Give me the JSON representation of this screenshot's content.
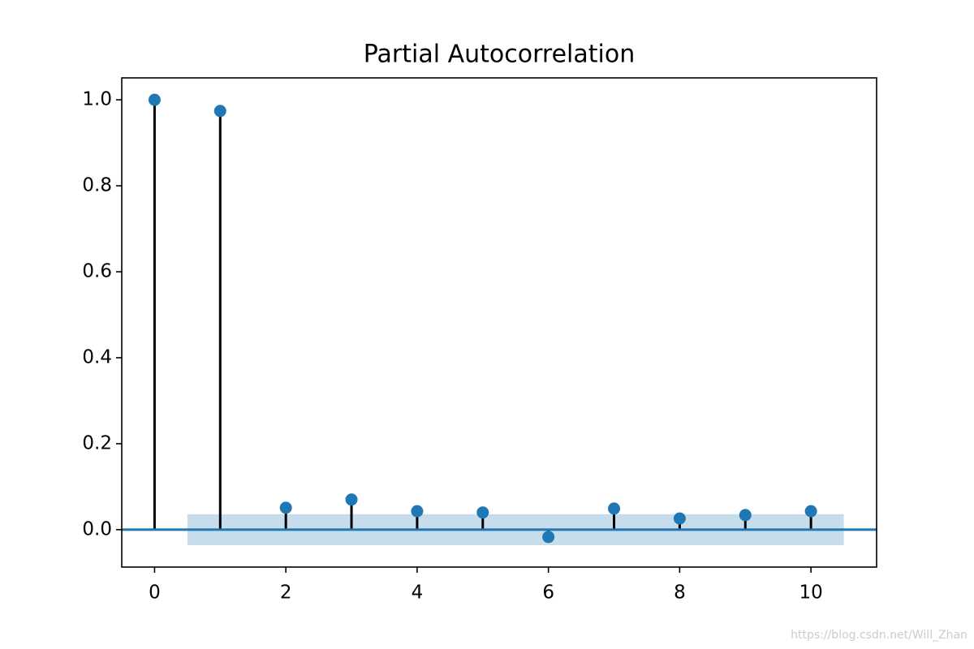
{
  "chart_data": {
    "type": "stem",
    "title": "Partial Autocorrelation",
    "x": [
      0,
      1,
      2,
      3,
      4,
      5,
      6,
      7,
      8,
      9,
      10
    ],
    "values": [
      1.0,
      0.974,
      0.051,
      0.07,
      0.043,
      0.04,
      -0.017,
      0.049,
      0.026,
      0.034,
      0.043
    ],
    "color": "#1f77b4",
    "stem_color": "#000000",
    "confint": [
      -0.036,
      0.036
    ],
    "confint_x": [
      0.5,
      10.5
    ],
    "xlim": [
      -0.5,
      11
    ],
    "ylim": [
      -0.087,
      1.051
    ],
    "xticks": [
      0,
      2,
      4,
      6,
      8,
      10
    ],
    "yticks": [
      {
        "value": 0,
        "label": "0.0"
      },
      0.2,
      0.4,
      0.6,
      0.8,
      {
        "value": 1,
        "label": "1.0"
      }
    ],
    "watermark": "https://blog.csdn.net/Will_Zhan"
  }
}
